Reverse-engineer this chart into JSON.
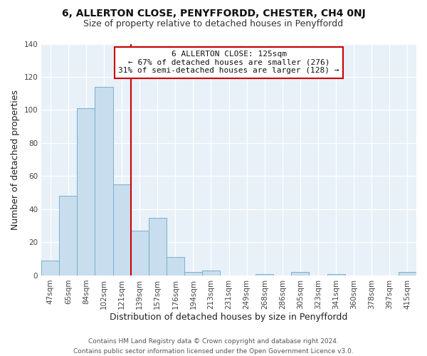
{
  "title": "6, ALLERTON CLOSE, PENYFFORDD, CHESTER, CH4 0NJ",
  "subtitle": "Size of property relative to detached houses in Penyffordd",
  "xlabel": "Distribution of detached houses by size in Penyffordd",
  "ylabel": "Number of detached properties",
  "footer_line1": "Contains HM Land Registry data © Crown copyright and database right 2024.",
  "footer_line2": "Contains public sector information licensed under the Open Government Licence v3.0.",
  "bin_labels": [
    "47sqm",
    "65sqm",
    "84sqm",
    "102sqm",
    "121sqm",
    "139sqm",
    "157sqm",
    "176sqm",
    "194sqm",
    "213sqm",
    "231sqm",
    "249sqm",
    "268sqm",
    "286sqm",
    "305sqm",
    "323sqm",
    "341sqm",
    "360sqm",
    "378sqm",
    "397sqm",
    "415sqm"
  ],
  "bar_values": [
    9,
    48,
    101,
    114,
    55,
    27,
    35,
    11,
    2,
    3,
    0,
    0,
    1,
    0,
    2,
    0,
    1,
    0,
    0,
    0,
    2
  ],
  "bar_color": "#c8dded",
  "bar_edge_color": "#7ab0cc",
  "vline_x": 4.5,
  "vline_color": "#cc0000",
  "ylim": [
    0,
    140
  ],
  "yticks": [
    0,
    20,
    40,
    60,
    80,
    100,
    120,
    140
  ],
  "annotation_title": "6 ALLERTON CLOSE: 125sqm",
  "annotation_line1": "← 67% of detached houses are smaller (276)",
  "annotation_line2": "31% of semi-detached houses are larger (128) →",
  "annotation_box_facecolor": "#ffffff",
  "annotation_box_edgecolor": "#cc0000",
  "bg_color": "#ffffff",
  "plot_bg_color": "#e8f0f8",
  "grid_color": "#ffffff",
  "tick_color": "#444444",
  "title_fontsize": 10,
  "subtitle_fontsize": 9,
  "ylabel_fontsize": 9,
  "xlabel_fontsize": 9,
  "tick_fontsize": 7.5,
  "footer_fontsize": 6.5
}
